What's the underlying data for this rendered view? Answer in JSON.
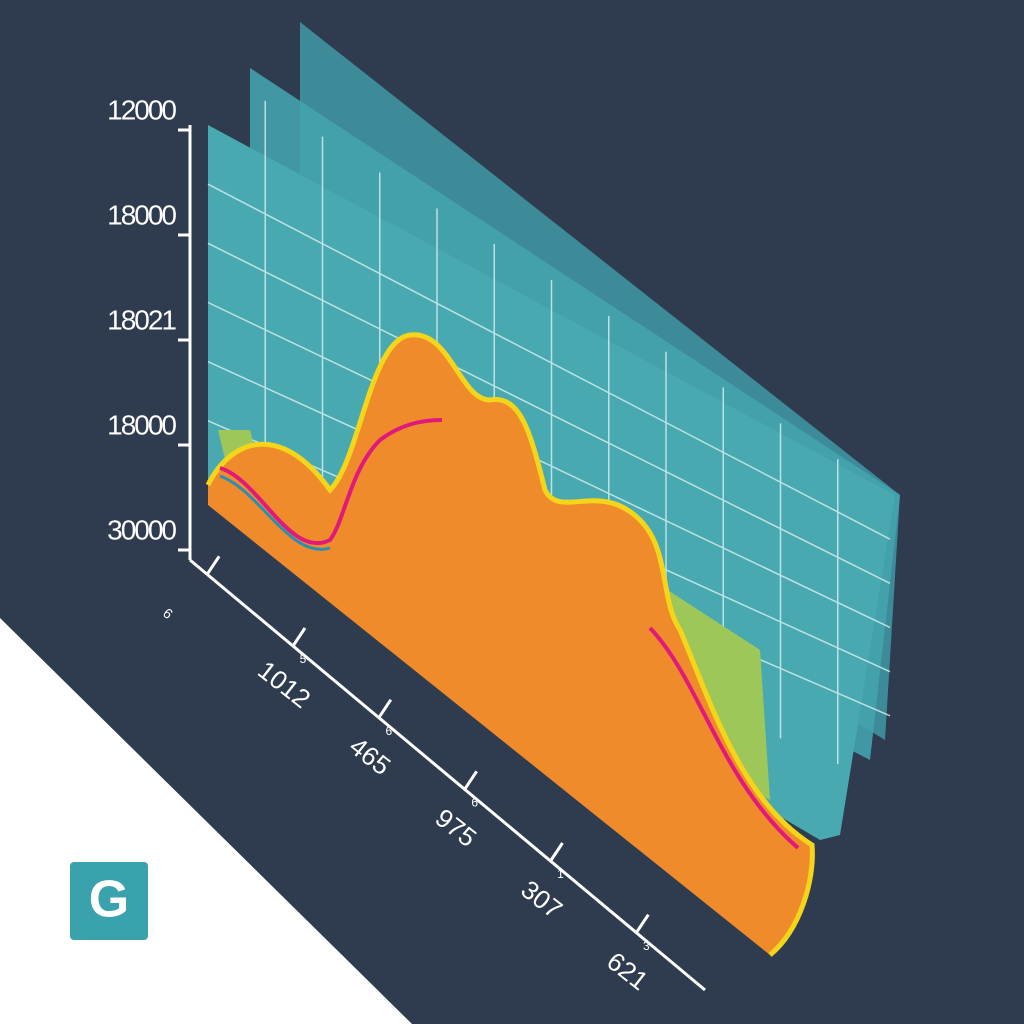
{
  "y_axis_labels": [
    "12000",
    "18000",
    "18021",
    "18000",
    "30000"
  ],
  "x_axis_labels": [
    "6",
    "1012",
    "465",
    "975",
    "307",
    "621"
  ],
  "x_axis_small_labels": [
    "5",
    "6",
    "6",
    "1",
    "3"
  ],
  "logo": "G"
}
